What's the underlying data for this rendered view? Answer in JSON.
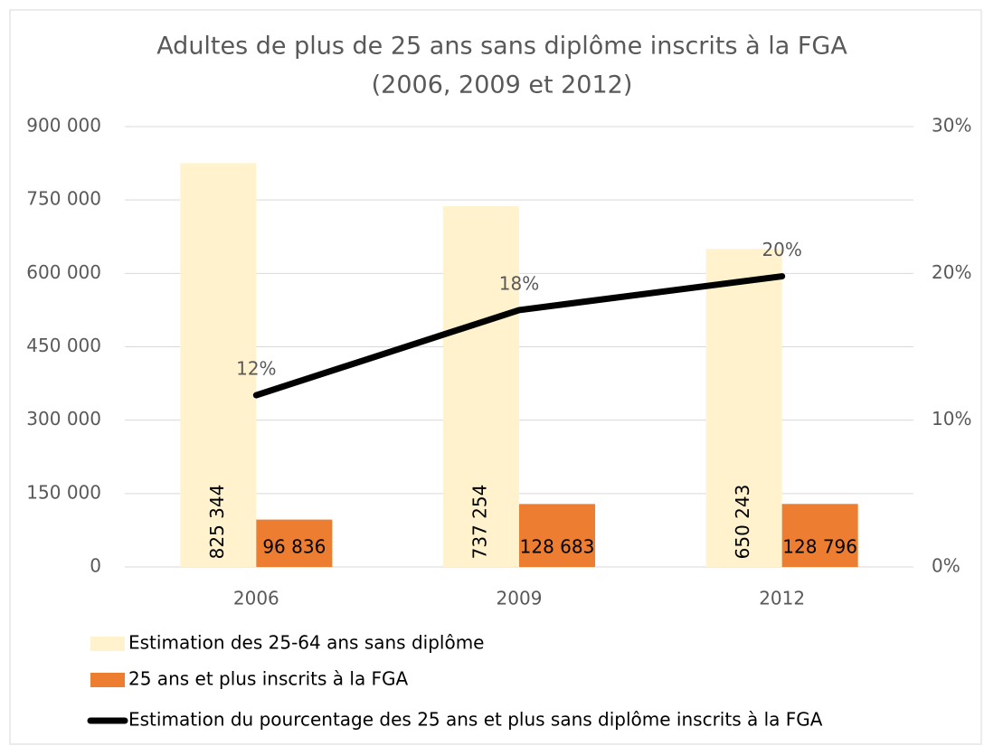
{
  "chart_data": {
    "type": "bar-line",
    "title": "Adultes de plus de 25 ans sans diplôme inscrits à la FGA",
    "subtitle": "(2006, 2009 et 2012)",
    "categories": [
      "2006",
      "2009",
      "2012"
    ],
    "series": [
      {
        "name": "Estimation des 25-64 ans sans diplôme",
        "type": "bar",
        "color": "#fff2cc",
        "values": [
          825344,
          737254,
          650243
        ],
        "value_labels": [
          "825 344",
          "737 254",
          "650 243"
        ]
      },
      {
        "name": "25 ans et plus inscrits à la FGA",
        "type": "bar",
        "color": "#ed7d31",
        "values": [
          96836,
          128683,
          128796
        ],
        "value_labels": [
          "96 836",
          "128 683",
          "128 796"
        ]
      },
      {
        "name": "Estimation du pourcentage des 25 ans et plus sans diplôme inscrits à la FGA",
        "type": "line",
        "axis": "y2",
        "color": "#000000",
        "values": [
          11.7,
          17.5,
          19.8
        ],
        "value_labels": [
          "12%",
          "18%",
          "20%"
        ]
      }
    ],
    "ylim": [
      0,
      900000
    ],
    "yticks": [
      0,
      {
        "value": 150000,
        "label": "150 000"
      },
      {
        "value": 300000,
        "label": "300 000"
      },
      {
        "value": 450000,
        "label": "450 000"
      },
      {
        "value": 600000,
        "label": "600 000"
      },
      {
        "value": 750000,
        "label": "750 000"
      },
      {
        "value": 900000,
        "label": "900 000"
      }
    ],
    "y2lim": [
      0,
      30
    ],
    "y2ticks": [
      {
        "value": 0,
        "label": "0%"
      },
      {
        "value": 10,
        "label": "10%"
      },
      {
        "value": 20,
        "label": "20%"
      },
      {
        "value": 30,
        "label": "30%"
      }
    ],
    "grid": true,
    "legend": "bottom"
  }
}
